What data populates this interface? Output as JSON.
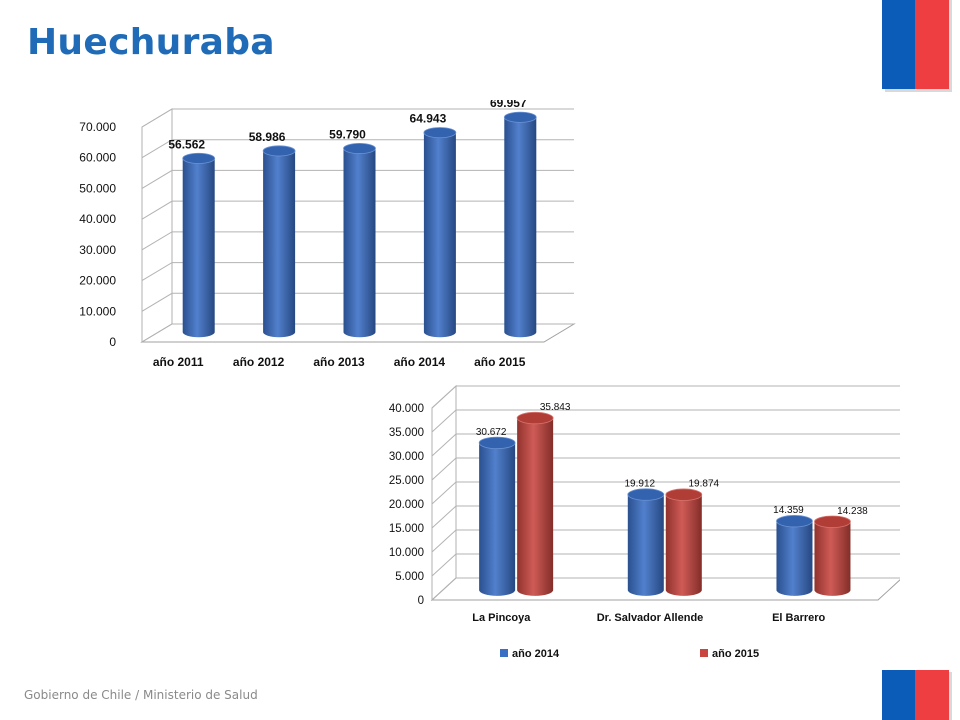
{
  "page": {
    "title": "Huechuraba",
    "footer": "Gobierno de Chile / Ministerio de Salud"
  },
  "colors": {
    "blue": "#3a6fc6",
    "red": "#c9453f",
    "title": "#1f6bb7",
    "flag_blue": "#0b5cb8",
    "flag_red": "#ef3e42"
  },
  "chart_data": [
    {
      "type": "bar",
      "categories": [
        "año 2011",
        "año 2012",
        "año 2013",
        "año 2014",
        "año 2015"
      ],
      "values": [
        56562,
        58986,
        59790,
        64943,
        69957
      ],
      "value_labels": [
        "56.562",
        "58.986",
        "59.790",
        "64.943",
        "69.957"
      ],
      "yticks": [
        "0",
        "10.000",
        "20.000",
        "30.000",
        "40.000",
        "50.000",
        "60.000",
        "70.000"
      ],
      "ylim": [
        0,
        70000
      ],
      "grid": true,
      "legend": "none"
    },
    {
      "type": "bar",
      "categories": [
        "La Pincoya",
        "Dr. Salvador Allende",
        "El Barrero"
      ],
      "series": [
        {
          "name": "año 2014",
          "values": [
            30672,
            19912,
            14359
          ],
          "value_labels": [
            "30.672",
            "19.912",
            "14.359"
          ]
        },
        {
          "name": "año 2015",
          "values": [
            35843,
            19874,
            14238
          ],
          "value_labels": [
            "35.843",
            "19.874",
            "14.238"
          ]
        }
      ],
      "yticks": [
        "0",
        "5.000",
        "10.000",
        "15.000",
        "20.000",
        "25.000",
        "30.000",
        "35.000",
        "40.000"
      ],
      "ylim": [
        0,
        40000
      ],
      "grid": true,
      "legend": "bottom"
    }
  ]
}
